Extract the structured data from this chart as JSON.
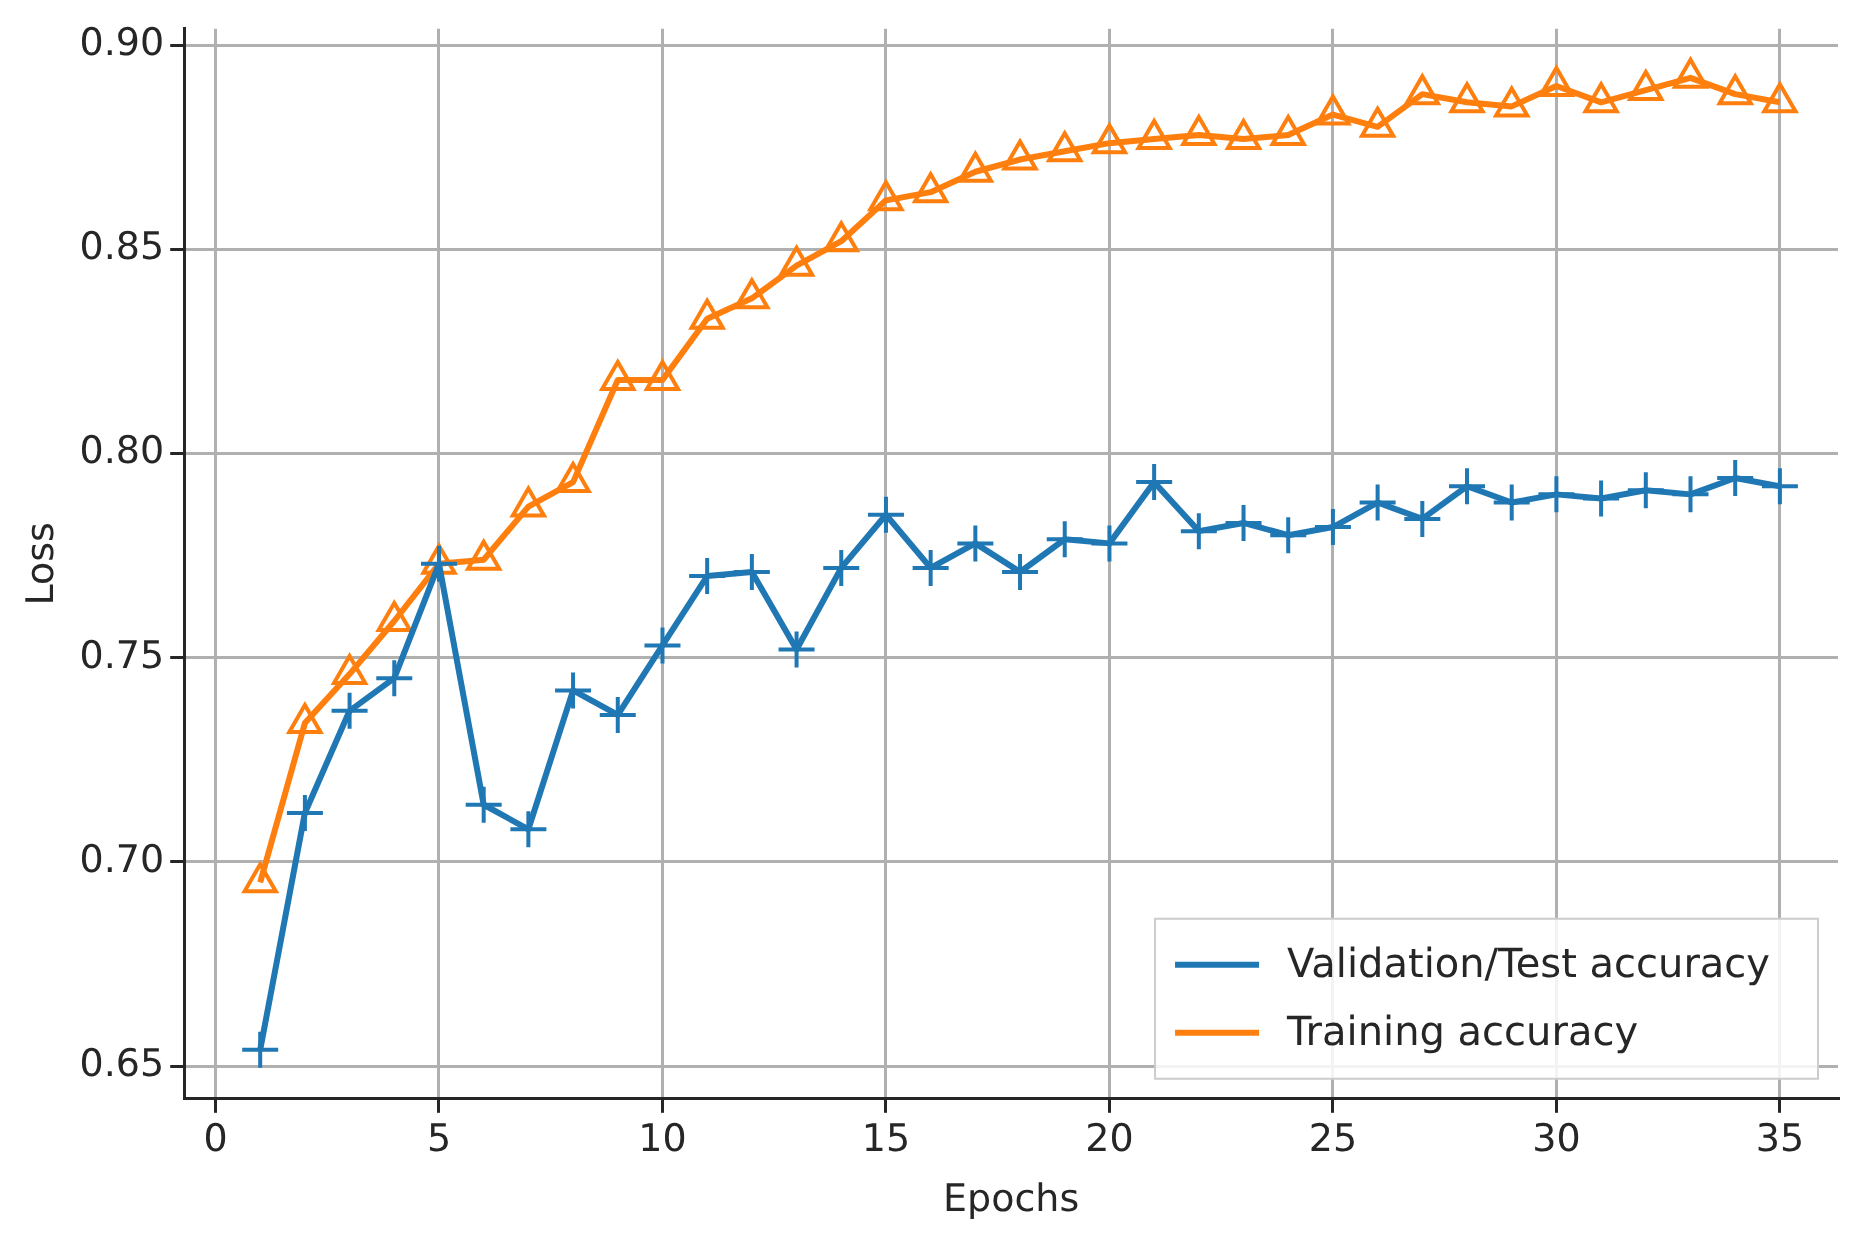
{
  "chart_data": {
    "type": "line",
    "xlabel": "Epochs",
    "ylabel": "Loss",
    "x": [
      1,
      2,
      3,
      4,
      5,
      6,
      7,
      8,
      9,
      10,
      11,
      12,
      13,
      14,
      15,
      16,
      17,
      18,
      19,
      20,
      21,
      22,
      23,
      24,
      25,
      26,
      27,
      28,
      29,
      30,
      31,
      32,
      33,
      34,
      35
    ],
    "series": [
      {
        "name": "Validation/Test accuracy",
        "color": "#1f77b4",
        "marker": "cross",
        "values": [
          0.654,
          0.712,
          0.737,
          0.745,
          0.773,
          0.714,
          0.708,
          0.742,
          0.736,
          0.753,
          0.77,
          0.771,
          0.752,
          0.772,
          0.785,
          0.772,
          0.778,
          0.771,
          0.779,
          0.778,
          0.793,
          0.781,
          0.783,
          0.78,
          0.782,
          0.788,
          0.784,
          0.792,
          0.788,
          0.79,
          0.789,
          0.791,
          0.79,
          0.794,
          0.792
        ]
      },
      {
        "name": "Training accuracy",
        "color": "#ff7f0e",
        "marker": "triangle",
        "values": [
          0.695,
          0.734,
          0.746,
          0.759,
          0.773,
          0.774,
          0.787,
          0.793,
          0.818,
          0.818,
          0.833,
          0.838,
          0.846,
          0.852,
          0.862,
          0.864,
          0.869,
          0.872,
          0.874,
          0.876,
          0.877,
          0.878,
          0.877,
          0.878,
          0.883,
          0.88,
          0.888,
          0.886,
          0.885,
          0.89,
          0.886,
          0.889,
          0.892,
          0.888,
          0.886
        ]
      }
    ],
    "xlim": [
      -0.7,
      36.3
    ],
    "xticks": [
      0,
      5,
      10,
      15,
      20,
      25,
      30,
      35
    ],
    "ylim": [
      0.642,
      0.904
    ],
    "yticks": [
      {
        "value": 0.65,
        "label": "0.65"
      },
      {
        "value": 0.7,
        "label": "0.70"
      },
      {
        "value": 0.75,
        "label": "0.75"
      },
      {
        "value": 0.8,
        "label": "0.80"
      },
      {
        "value": 0.85,
        "label": "0.85"
      },
      {
        "value": 0.9,
        "label": "0.90"
      }
    ],
    "grid": true,
    "legend": "bottom right",
    "line_style": "solid"
  }
}
